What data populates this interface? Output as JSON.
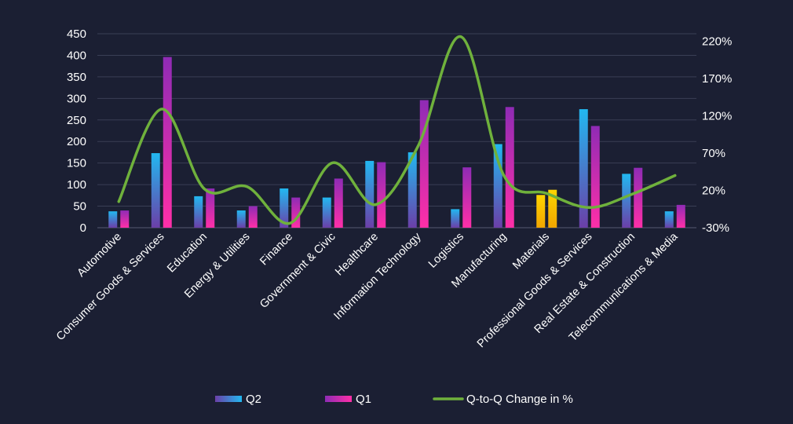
{
  "chart_data": {
    "type": "bar",
    "categories": [
      "Automotive",
      "Consumer Goods & Services",
      "Education",
      "Energy & Utilities",
      "Finance",
      "Government & Civic",
      "Healthcare",
      "Information Technology",
      "Logistics",
      "Manufacturing",
      "Materials",
      "Professional Goods & Services",
      "Real Estate & Construction",
      "Telecommunications & Media"
    ],
    "series": [
      {
        "name": "Q2",
        "type": "bar",
        "axis": "left",
        "values": [
          38,
          173,
          73,
          40,
          91,
          70,
          155,
          175,
          43,
          194,
          76,
          275,
          125,
          38
        ]
      },
      {
        "name": "Q1",
        "type": "bar",
        "axis": "left",
        "values": [
          40,
          396,
          91,
          50,
          70,
          114,
          152,
          296,
          140,
          280,
          88,
          236,
          139,
          53
        ]
      },
      {
        "name": "Q-to-Q Change in %",
        "type": "line",
        "axis": "right",
        "values": [
          5,
          129,
          22,
          25,
          -24,
          57,
          1,
          80,
          226,
          40,
          16,
          -3,
          15,
          40
        ]
      }
    ],
    "highlight_category": "Materials",
    "y_left": {
      "min": 0,
      "max": 450,
      "ticks": [
        0,
        50,
        100,
        150,
        200,
        250,
        300,
        350,
        400,
        450
      ]
    },
    "y_right": {
      "min": -30,
      "max": 230,
      "ticks": [
        "-30%",
        "20%",
        "70%",
        "120%",
        "170%",
        "220%"
      ],
      "tick_values": [
        -30,
        20,
        70,
        120,
        170,
        220
      ]
    },
    "grid": true,
    "legend_position": "bottom",
    "colors": {
      "background": "#1b1f33",
      "gridline": "#3a3f55",
      "q2_top": "#22b8f0",
      "q2_bottom": "#6b3fa8",
      "q1_top": "#8f2bb5",
      "q1_bottom": "#ff2fa8",
      "highlight_top": "#ffd400",
      "highlight_bottom": "#f2a600",
      "line": "#6fb13c",
      "text": "#ffffff"
    }
  }
}
